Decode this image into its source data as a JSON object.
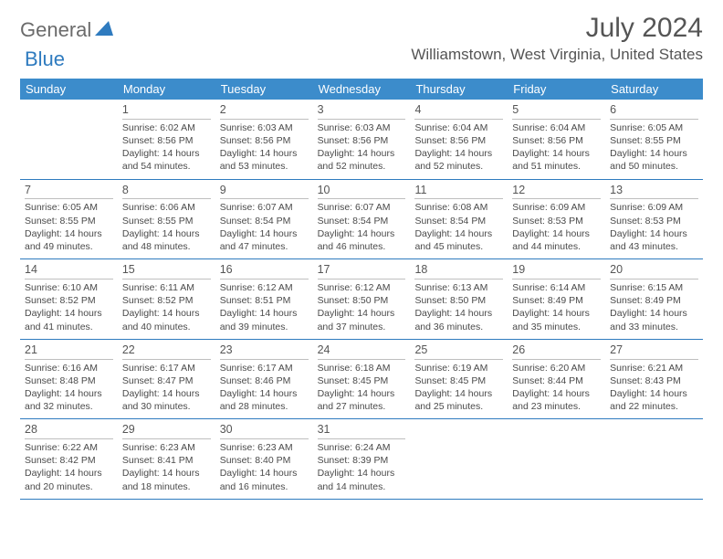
{
  "logo": {
    "text1": "General",
    "text2": "Blue",
    "icon_color": "#2f7bbf"
  },
  "title": "July 2024",
  "location": "Williamstown, West Virginia, United States",
  "header_bg": "#3c8ccb",
  "border_color": "#2f7bbf",
  "day_names": [
    "Sunday",
    "Monday",
    "Tuesday",
    "Wednesday",
    "Thursday",
    "Friday",
    "Saturday"
  ],
  "weeks": [
    [
      {
        "empty": true
      },
      {
        "n": "1",
        "sr": "6:02 AM",
        "ss": "8:56 PM",
        "dl": "14 hours and 54 minutes."
      },
      {
        "n": "2",
        "sr": "6:03 AM",
        "ss": "8:56 PM",
        "dl": "14 hours and 53 minutes."
      },
      {
        "n": "3",
        "sr": "6:03 AM",
        "ss": "8:56 PM",
        "dl": "14 hours and 52 minutes."
      },
      {
        "n": "4",
        "sr": "6:04 AM",
        "ss": "8:56 PM",
        "dl": "14 hours and 52 minutes."
      },
      {
        "n": "5",
        "sr": "6:04 AM",
        "ss": "8:56 PM",
        "dl": "14 hours and 51 minutes."
      },
      {
        "n": "6",
        "sr": "6:05 AM",
        "ss": "8:55 PM",
        "dl": "14 hours and 50 minutes."
      }
    ],
    [
      {
        "n": "7",
        "sr": "6:05 AM",
        "ss": "8:55 PM",
        "dl": "14 hours and 49 minutes."
      },
      {
        "n": "8",
        "sr": "6:06 AM",
        "ss": "8:55 PM",
        "dl": "14 hours and 48 minutes."
      },
      {
        "n": "9",
        "sr": "6:07 AM",
        "ss": "8:54 PM",
        "dl": "14 hours and 47 minutes."
      },
      {
        "n": "10",
        "sr": "6:07 AM",
        "ss": "8:54 PM",
        "dl": "14 hours and 46 minutes."
      },
      {
        "n": "11",
        "sr": "6:08 AM",
        "ss": "8:54 PM",
        "dl": "14 hours and 45 minutes."
      },
      {
        "n": "12",
        "sr": "6:09 AM",
        "ss": "8:53 PM",
        "dl": "14 hours and 44 minutes."
      },
      {
        "n": "13",
        "sr": "6:09 AM",
        "ss": "8:53 PM",
        "dl": "14 hours and 43 minutes."
      }
    ],
    [
      {
        "n": "14",
        "sr": "6:10 AM",
        "ss": "8:52 PM",
        "dl": "14 hours and 41 minutes."
      },
      {
        "n": "15",
        "sr": "6:11 AM",
        "ss": "8:52 PM",
        "dl": "14 hours and 40 minutes."
      },
      {
        "n": "16",
        "sr": "6:12 AM",
        "ss": "8:51 PM",
        "dl": "14 hours and 39 minutes."
      },
      {
        "n": "17",
        "sr": "6:12 AM",
        "ss": "8:50 PM",
        "dl": "14 hours and 37 minutes."
      },
      {
        "n": "18",
        "sr": "6:13 AM",
        "ss": "8:50 PM",
        "dl": "14 hours and 36 minutes."
      },
      {
        "n": "19",
        "sr": "6:14 AM",
        "ss": "8:49 PM",
        "dl": "14 hours and 35 minutes."
      },
      {
        "n": "20",
        "sr": "6:15 AM",
        "ss": "8:49 PM",
        "dl": "14 hours and 33 minutes."
      }
    ],
    [
      {
        "n": "21",
        "sr": "6:16 AM",
        "ss": "8:48 PM",
        "dl": "14 hours and 32 minutes."
      },
      {
        "n": "22",
        "sr": "6:17 AM",
        "ss": "8:47 PM",
        "dl": "14 hours and 30 minutes."
      },
      {
        "n": "23",
        "sr": "6:17 AM",
        "ss": "8:46 PM",
        "dl": "14 hours and 28 minutes."
      },
      {
        "n": "24",
        "sr": "6:18 AM",
        "ss": "8:45 PM",
        "dl": "14 hours and 27 minutes."
      },
      {
        "n": "25",
        "sr": "6:19 AM",
        "ss": "8:45 PM",
        "dl": "14 hours and 25 minutes."
      },
      {
        "n": "26",
        "sr": "6:20 AM",
        "ss": "8:44 PM",
        "dl": "14 hours and 23 minutes."
      },
      {
        "n": "27",
        "sr": "6:21 AM",
        "ss": "8:43 PM",
        "dl": "14 hours and 22 minutes."
      }
    ],
    [
      {
        "n": "28",
        "sr": "6:22 AM",
        "ss": "8:42 PM",
        "dl": "14 hours and 20 minutes."
      },
      {
        "n": "29",
        "sr": "6:23 AM",
        "ss": "8:41 PM",
        "dl": "14 hours and 18 minutes."
      },
      {
        "n": "30",
        "sr": "6:23 AM",
        "ss": "8:40 PM",
        "dl": "14 hours and 16 minutes."
      },
      {
        "n": "31",
        "sr": "6:24 AM",
        "ss": "8:39 PM",
        "dl": "14 hours and 14 minutes."
      },
      {
        "empty": true
      },
      {
        "empty": true
      },
      {
        "empty": true
      }
    ]
  ],
  "labels": {
    "sunrise": "Sunrise:",
    "sunset": "Sunset:",
    "daylight": "Daylight:"
  }
}
